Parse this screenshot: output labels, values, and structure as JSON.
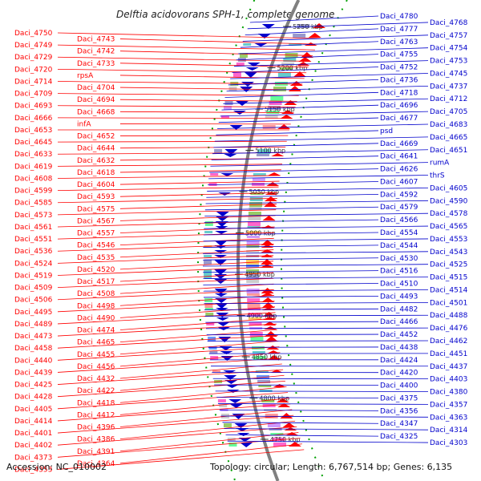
{
  "title": "Delftia acidovorans SPH-1, complete genome",
  "footer": {
    "accession": "Accession: NC_010002",
    "summary": "Topology: circular; Length: 6,767,514 bp; Genes: 6,135"
  },
  "colors": {
    "reverse_strand": "#ff0000",
    "forward_strand": "#0000cc",
    "backbone": "#808080",
    "tick_marks": "#00a000"
  },
  "ticks": [
    "5250 kbp",
    "5200 kbp",
    "5150 kbp",
    "5100 kbp",
    "5050 kbp",
    "5000 kbp",
    "4950 kbp",
    "4900 kbp",
    "4850 kbp",
    "4800 kbp",
    "4750 kbp"
  ],
  "left_labels": [
    "Daci_4750",
    "Daci_4743",
    "Daci_4749",
    "Daci_4742",
    "Daci_4729",
    "Daci_4733",
    "Daci_4720",
    "rpsA",
    "Daci_4714",
    "Daci_4704",
    "Daci_4709",
    "Daci_4694",
    "Daci_4693",
    "Daci_4668",
    "Daci_4666",
    "infA",
    "Daci_4653",
    "Daci_4652",
    "Daci_4645",
    "Daci_4644",
    "Daci_4633",
    "Daci_4632",
    "Daci_4619",
    "Daci_4618",
    "Daci_4608",
    "Daci_4604",
    "Daci_4599",
    "Daci_4593",
    "Daci_4585",
    "Daci_4575",
    "Daci_4573",
    "Daci_4567",
    "Daci_4561",
    "Daci_4557",
    "Daci_4551",
    "Daci_4546",
    "Daci_4536",
    "Daci_4535",
    "Daci_4524",
    "Daci_4520",
    "Daci_4519",
    "Daci_4517",
    "Daci_4509",
    "Daci_4508",
    "Daci_4506",
    "Daci_4498",
    "Daci_4495",
    "Daci_4490",
    "Daci_4489",
    "Daci_4474",
    "Daci_4473",
    "Daci_4465",
    "Daci_4458",
    "Daci_4455",
    "Daci_4440",
    "Daci_4456",
    "Daci_4439",
    "Daci_4432",
    "Daci_4425",
    "Daci_4422",
    "Daci_4428",
    "Daci_4418",
    "Daci_4405",
    "Daci_4412",
    "Daci_4414",
    "Daci_4396",
    "Daci_4401",
    "Daci_4386",
    "Daci_4402",
    "Daci_4391",
    "Daci_4373",
    "Daci_4364",
    "Daci_4353"
  ],
  "right_labels": [
    "Daci_4780",
    "Daci_4768",
    "Daci_4777",
    "Daci_4757",
    "Daci_4763",
    "Daci_4754",
    "Daci_4755",
    "Daci_4753",
    "Daci_4752",
    "Daci_4745",
    "Daci_4736",
    "Daci_4737",
    "Daci_4718",
    "Daci_4712",
    "Daci_4696",
    "Daci_4705",
    "Daci_4677",
    "Daci_4683",
    "psd",
    "Daci_4665",
    "Daci_4669",
    "Daci_4651",
    "Daci_4641",
    "rumA",
    "Daci_4626",
    "thrS",
    "Daci_4607",
    "Daci_4605",
    "Daci_4592",
    "Daci_4590",
    "Daci_4579",
    "Daci_4578",
    "Daci_4566",
    "Daci_4565",
    "Daci_4554",
    "Daci_4553",
    "Daci_4544",
    "Daci_4543",
    "Daci_4530",
    "Daci_4525",
    "Daci_4516",
    "Daci_4515",
    "Daci_4510",
    "Daci_4514",
    "Daci_4493",
    "Daci_4501",
    "Daci_4482",
    "Daci_4488",
    "Daci_4466",
    "Daci_4476",
    "Daci_4452",
    "Daci_4462",
    "Daci_4438",
    "Daci_4451",
    "Daci_4424",
    "Daci_4437",
    "Daci_4420",
    "Daci_4403",
    "Daci_4400",
    "Daci_4380",
    "Daci_4375",
    "Daci_4357",
    "Daci_4356",
    "Daci_4363",
    "Daci_4347",
    "Daci_4314",
    "Daci_4325",
    "Daci_4303"
  ]
}
